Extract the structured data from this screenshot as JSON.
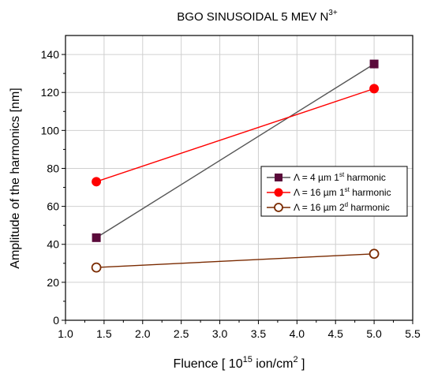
{
  "chart_data": {
    "type": "line",
    "title": "BGO SINUSOIDAL 5 MEV N",
    "title_sup": "3+",
    "xlabel_pre": "Fluence [ 10",
    "xlabel_sup": "15",
    "xlabel_mid": " ion/cm",
    "xlabel_sup2": "2",
    "xlabel_post": " ]",
    "ylabel": "Amplitude of the harmonics [nm]",
    "xlim": [
      1.0,
      5.5
    ],
    "ylim": [
      0,
      150
    ],
    "xticks": [
      1.0,
      1.5,
      2.0,
      2.5,
      3.0,
      3.5,
      4.0,
      4.5,
      5.0,
      5.5
    ],
    "xtick_labels": [
      "1.0",
      "1.5",
      "2.0",
      "2.5",
      "3.0",
      "3.5",
      "4.0",
      "4.5",
      "5.0",
      "5.5"
    ],
    "yticks": [
      0,
      20,
      40,
      60,
      80,
      100,
      120,
      140
    ],
    "ytick_labels": [
      "0",
      "20",
      "40",
      "60",
      "80",
      "100",
      "120",
      "140"
    ],
    "grid": true,
    "legend_position": "right",
    "series": [
      {
        "name_pre": "Λ = 4 µm 1",
        "name_sup": "st",
        "name_post": " harmonic",
        "color": "#5a0a3a",
        "marker": "square",
        "x": [
          1.4,
          5.0
        ],
        "y": [
          43.5,
          135
        ]
      },
      {
        "name_pre": "Λ = 16 µm 1",
        "name_sup": "st",
        "name_post": " harmonic",
        "color": "#ff0000",
        "marker": "circle",
        "x": [
          1.4,
          5.0
        ],
        "y": [
          73,
          122
        ]
      },
      {
        "name_pre": "Λ = 16 µm 2",
        "name_sup": "d",
        "name_post": " harmonic",
        "color": "#7a2a00",
        "marker": "open-circle",
        "x": [
          1.4,
          5.0
        ],
        "y": [
          27.8,
          35
        ]
      }
    ]
  }
}
